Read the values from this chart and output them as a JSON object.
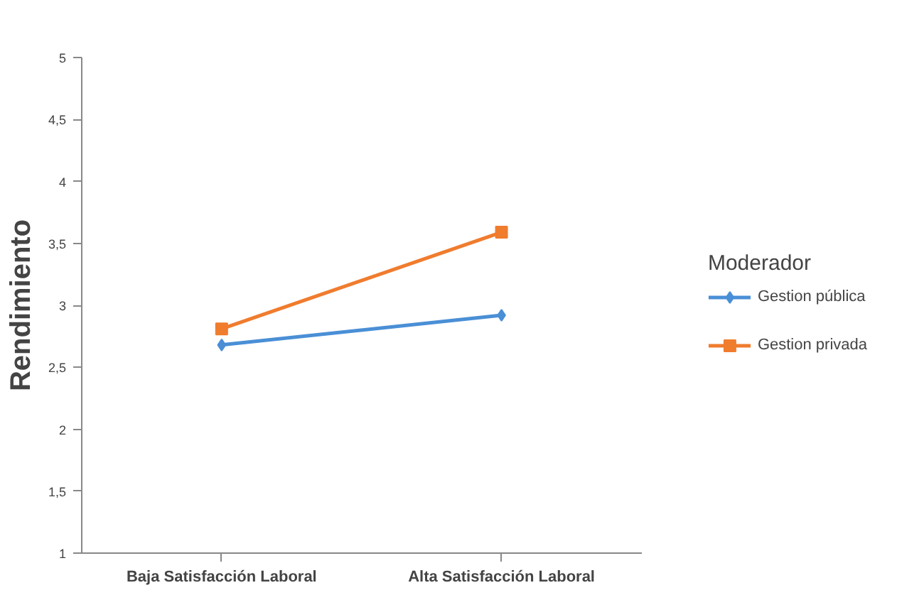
{
  "chart_data": {
    "type": "line",
    "ylabel": "Rendimiento",
    "legend_title": "Moderador",
    "legend": "right",
    "categories": [
      "Baja Satisfacción Laboral",
      "Alta Satisfacción Laboral"
    ],
    "ylim": [
      1,
      5
    ],
    "yticks": [
      1,
      {
        "value": 1.5,
        "label": "1,5"
      },
      2,
      {
        "value": 2.5,
        "label": "2,5"
      },
      3,
      {
        "value": 3.5,
        "label": "3,5"
      },
      4,
      {
        "value": 4.5,
        "label": "4,5"
      },
      5
    ],
    "grid": false,
    "series": [
      {
        "name": "Gestion pública",
        "color": "#4a8fd6",
        "values": [
          2.68,
          2.92
        ],
        "marker": "diamond"
      },
      {
        "name": "Gestion privada",
        "color": "#f07c2e",
        "values": [
          2.81,
          3.59
        ],
        "marker": "square"
      }
    ]
  }
}
